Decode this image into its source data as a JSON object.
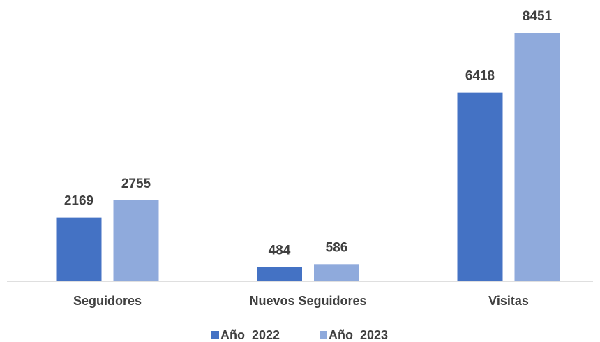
{
  "chart_data": {
    "type": "bar",
    "categories": [
      "Seguidores",
      "Nuevos Seguidores",
      "Visitas"
    ],
    "series": [
      {
        "name": "Año  2022",
        "color": "#4472c4",
        "values": [
          2169,
          484,
          6418
        ]
      },
      {
        "name": "Año  2023",
        "color": "#8faadc",
        "values": [
          2755,
          586,
          8451
        ]
      }
    ],
    "legend": "bottom"
  }
}
